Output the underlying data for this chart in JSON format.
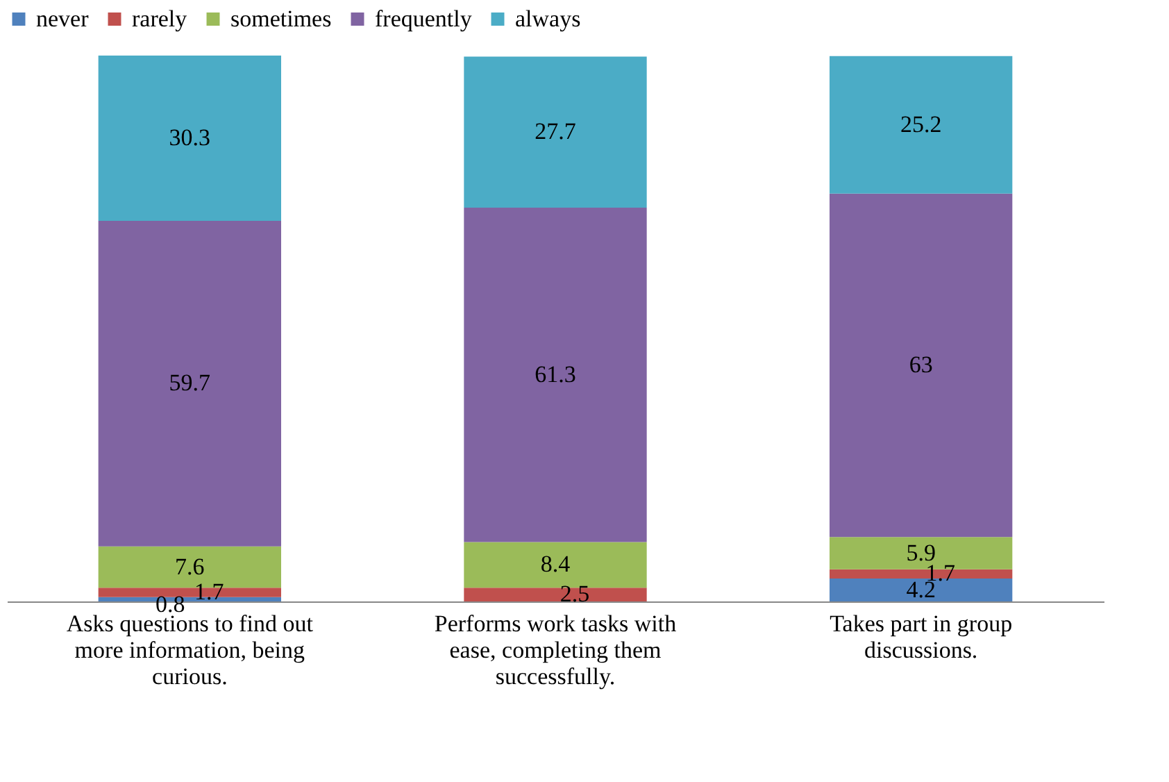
{
  "chart_data": {
    "type": "bar",
    "stacked": true,
    "data_labels": true,
    "legend": "top",
    "grid": false,
    "categories": [
      "Asks questions to find out more information, being curious.",
      "Performs work tasks with ease, completing them successfully.",
      "Takes part in group discussions."
    ],
    "series": [
      {
        "name": "never",
        "color": "#4f81bd",
        "values": [
          0.8,
          null,
          4.2
        ]
      },
      {
        "name": "rarely",
        "color": "#c0504d",
        "values": [
          1.7,
          2.5,
          1.7
        ]
      },
      {
        "name": "sometimes",
        "color": "#9bbb59",
        "values": [
          7.6,
          8.4,
          5.9
        ]
      },
      {
        "name": "frequently",
        "color": "#8064a2",
        "values": [
          59.7,
          61.3,
          63
        ]
      },
      {
        "name": "always",
        "color": "#4bacc6",
        "values": [
          30.3,
          27.7,
          25.2
        ]
      }
    ]
  }
}
